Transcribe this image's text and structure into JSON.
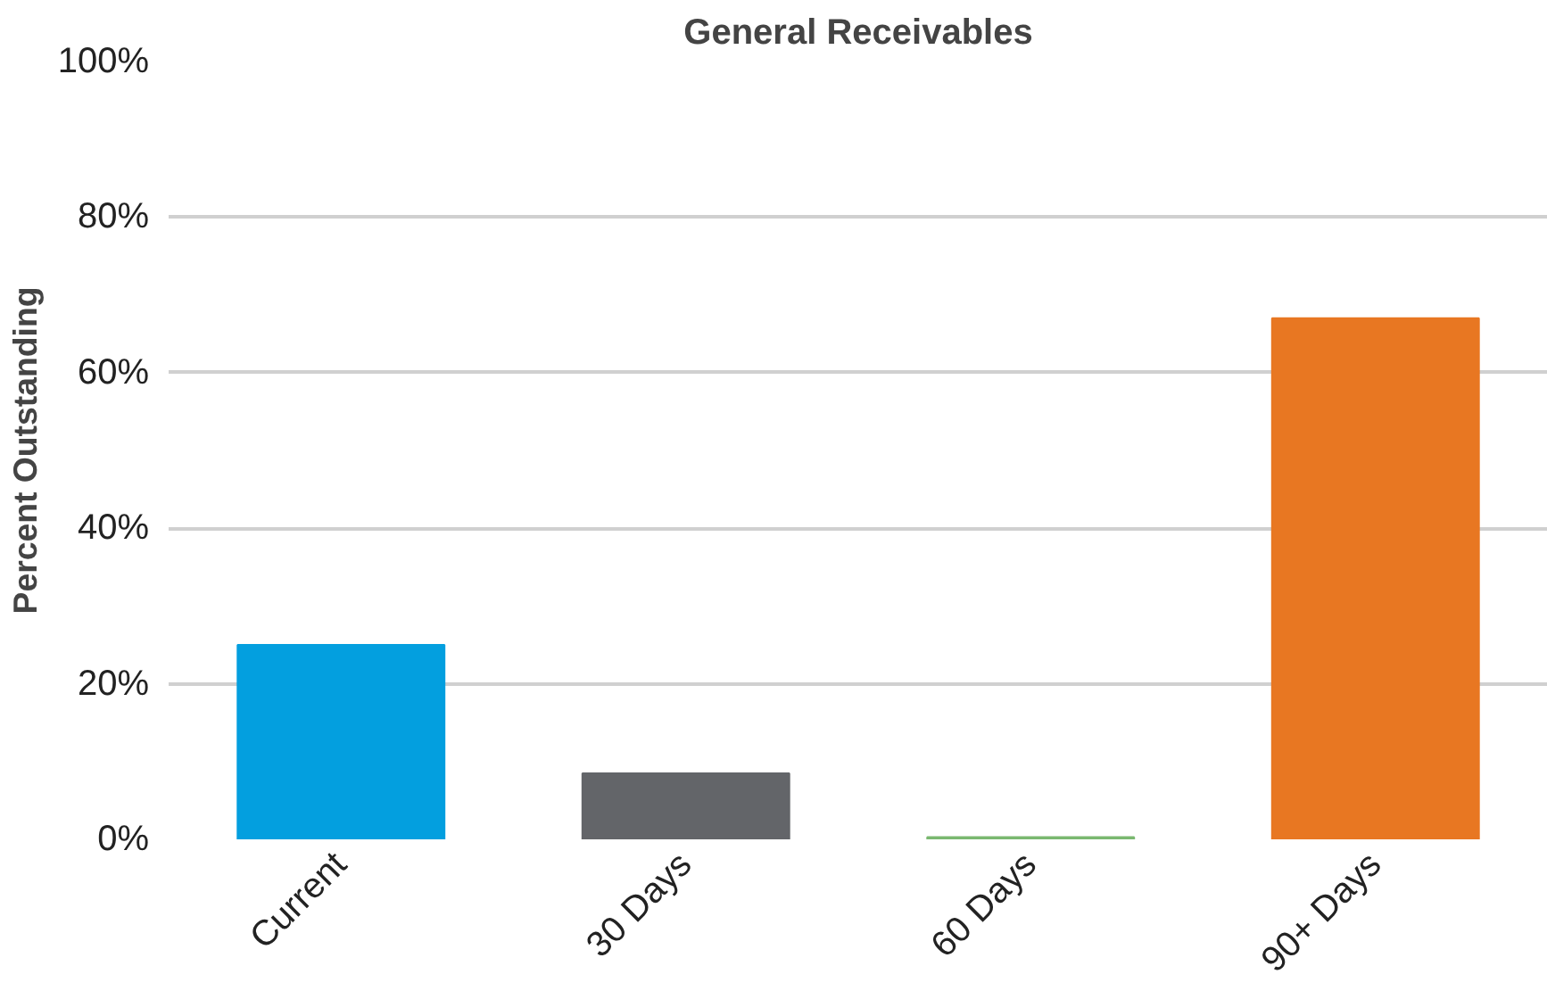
{
  "chart_data": {
    "type": "bar",
    "title": "General Receivables",
    "ylabel": "Percent Outstanding",
    "categories": [
      "Current",
      "30 Days",
      "60 Days",
      "90+ Days"
    ],
    "values": [
      25,
      8.5,
      0.3,
      67
    ],
    "colors": [
      "#039fdf",
      "#636569",
      "#7ab870",
      "#e87722"
    ],
    "ylim": [
      0,
      100
    ],
    "yticks": [
      {
        "value": 0,
        "label": "0%"
      },
      {
        "value": 20,
        "label": "20%"
      },
      {
        "value": 40,
        "label": "40%"
      },
      {
        "value": 60,
        "label": "60%"
      },
      {
        "value": 80,
        "label": "80%"
      },
      {
        "value": 100,
        "label": "100%"
      }
    ],
    "grid": "y"
  }
}
